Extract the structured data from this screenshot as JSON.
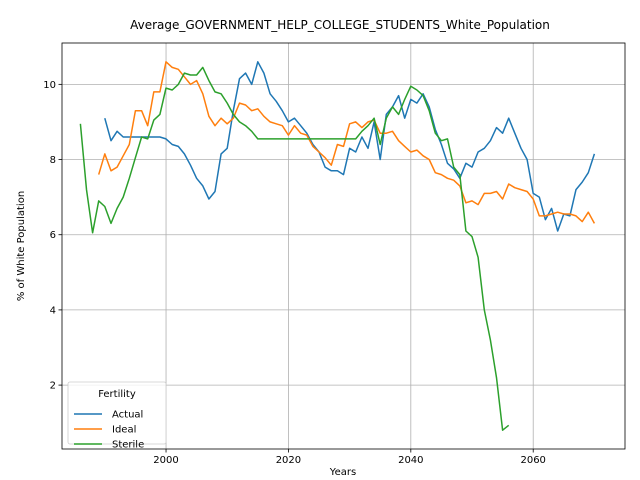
{
  "chart_data": {
    "type": "line",
    "title": "Average_GOVERNMENT_HELP_COLLEGE_STUDENTS_White_Population",
    "xlabel": "Years",
    "ylabel": "% of White Population",
    "xlim": [
      1983,
      2075
    ],
    "ylim": [
      0.3,
      11.1
    ],
    "xticks": [
      2000,
      2020,
      2040,
      2060
    ],
    "yticks": [
      2,
      4,
      6,
      8,
      10
    ],
    "grid": true,
    "legend": {
      "title": "Fertility",
      "location": "lower-left"
    },
    "series": [
      {
        "name": "Actual",
        "color": "#1f77b4",
        "x": [
          1990,
          1991,
          1992,
          1993,
          1994,
          1995,
          1996,
          1997,
          1998,
          1999,
          2000,
          2001,
          2002,
          2003,
          2004,
          2005,
          2006,
          2007,
          2008,
          2009,
          2010,
          2011,
          2012,
          2013,
          2014,
          2015,
          2016,
          2017,
          2018,
          2019,
          2020,
          2021,
          2022,
          2023,
          2024,
          2025,
          2026,
          2027,
          2028,
          2029,
          2030,
          2031,
          2032,
          2033,
          2034,
          2035,
          2036,
          2037,
          2038,
          2039,
          2040,
          2041,
          2042,
          2043,
          2044,
          2045,
          2046,
          2047,
          2048,
          2049,
          2050,
          2051,
          2052,
          2053,
          2054,
          2055,
          2056,
          2057,
          2058,
          2059,
          2060,
          2061,
          2062,
          2063,
          2064,
          2065,
          2066,
          2067,
          2068,
          2069,
          2070
        ],
        "values": [
          9.1,
          8.5,
          8.75,
          8.6,
          8.6,
          8.6,
          8.6,
          8.6,
          8.6,
          8.6,
          8.55,
          8.4,
          8.35,
          8.15,
          7.85,
          7.5,
          7.3,
          6.95,
          7.15,
          8.15,
          8.3,
          9.3,
          10.15,
          10.3,
          10.0,
          10.6,
          10.3,
          9.75,
          9.55,
          9.3,
          9.0,
          9.1,
          8.9,
          8.7,
          8.4,
          8.2,
          7.8,
          7.7,
          7.7,
          7.6,
          8.3,
          8.2,
          8.6,
          8.3,
          9.0,
          8.0,
          9.2,
          9.4,
          9.7,
          9.1,
          9.6,
          9.5,
          9.75,
          9.4,
          8.8,
          8.4,
          7.9,
          7.75,
          7.5,
          7.9,
          7.8,
          8.2,
          8.3,
          8.5,
          8.85,
          8.7,
          9.1,
          8.7,
          8.3,
          8.0,
          7.1,
          7.0,
          6.4,
          6.7,
          6.1,
          6.55,
          6.5,
          7.2,
          7.4,
          7.65,
          8.15
        ]
      },
      {
        "name": "Ideal",
        "color": "#ff7f0e",
        "x": [
          1989,
          1990,
          1991,
          1992,
          1993,
          1994,
          1995,
          1996,
          1997,
          1998,
          1999,
          2000,
          2001,
          2002,
          2003,
          2004,
          2005,
          2006,
          2007,
          2008,
          2009,
          2010,
          2011,
          2012,
          2013,
          2014,
          2015,
          2016,
          2017,
          2018,
          2019,
          2020,
          2021,
          2022,
          2023,
          2024,
          2025,
          2026,
          2027,
          2028,
          2029,
          2030,
          2031,
          2032,
          2033,
          2034,
          2035,
          2036,
          2037,
          2038,
          2039,
          2040,
          2041,
          2042,
          2043,
          2044,
          2045,
          2046,
          2047,
          2048,
          2049,
          2050,
          2051,
          2052,
          2053,
          2054,
          2055,
          2056,
          2057,
          2058,
          2059,
          2060,
          2061,
          2062,
          2063,
          2064,
          2065,
          2066,
          2067,
          2068,
          2069,
          2070
        ],
        "values": [
          7.6,
          8.15,
          7.7,
          7.8,
          8.1,
          8.4,
          9.3,
          9.3,
          8.9,
          9.8,
          9.8,
          10.6,
          10.45,
          10.4,
          10.2,
          10.0,
          10.1,
          9.75,
          9.15,
          8.9,
          9.1,
          8.95,
          9.1,
          9.5,
          9.45,
          9.3,
          9.35,
          9.15,
          9.0,
          8.95,
          8.9,
          8.65,
          8.9,
          8.7,
          8.65,
          8.35,
          8.2,
          8.05,
          7.85,
          8.4,
          8.35,
          8.95,
          9.0,
          8.85,
          9.0,
          9.05,
          8.7,
          8.7,
          8.75,
          8.5,
          8.35,
          8.2,
          8.25,
          8.1,
          8.0,
          7.65,
          7.6,
          7.5,
          7.45,
          7.3,
          6.85,
          6.9,
          6.8,
          7.1,
          7.1,
          7.15,
          6.95,
          7.35,
          7.25,
          7.2,
          7.15,
          6.95,
          6.5,
          6.5,
          6.55,
          6.6,
          6.55,
          6.55,
          6.5,
          6.35,
          6.6,
          6.3
        ]
      },
      {
        "name": "Sterile",
        "color": "#2ca02c",
        "x": [
          1986,
          1987,
          1988,
          1989,
          1990,
          1991,
          1992,
          1993,
          1994,
          1995,
          1996,
          1997,
          1998,
          1999,
          2000,
          2001,
          2002,
          2003,
          2004,
          2005,
          2006,
          2007,
          2008,
          2009,
          2010,
          2011,
          2012,
          2013,
          2014,
          2015,
          2016,
          2017,
          2018,
          2019,
          2020,
          2021,
          2022,
          2023,
          2024,
          2025,
          2026,
          2027,
          2028,
          2029,
          2030,
          2031,
          2032,
          2033,
          2034,
          2035,
          2036,
          2037,
          2038,
          2039,
          2040,
          2041,
          2042,
          2043,
          2044,
          2045,
          2046,
          2047,
          2048,
          2049,
          2050,
          2051,
          2052,
          2053,
          2054,
          2055,
          2056
        ],
        "values": [
          8.95,
          7.2,
          6.05,
          6.9,
          6.75,
          6.3,
          6.7,
          7.0,
          7.5,
          8.05,
          8.6,
          8.55,
          9.05,
          9.2,
          9.9,
          9.85,
          10.0,
          10.3,
          10.25,
          10.25,
          10.45,
          10.1,
          9.8,
          9.75,
          9.5,
          9.2,
          9.0,
          8.9,
          8.75,
          8.55,
          8.55,
          8.55,
          8.55,
          8.55,
          8.55,
          8.55,
          8.55,
          8.55,
          8.55,
          8.55,
          8.55,
          8.55,
          8.55,
          8.55,
          8.55,
          8.55,
          8.75,
          8.9,
          9.1,
          8.4,
          9.1,
          9.4,
          9.2,
          9.6,
          9.95,
          9.85,
          9.7,
          9.3,
          8.7,
          8.5,
          8.55,
          7.8,
          7.6,
          6.1,
          5.95,
          5.4,
          4.0,
          3.2,
          2.2,
          0.8,
          0.93
        ]
      }
    ]
  }
}
